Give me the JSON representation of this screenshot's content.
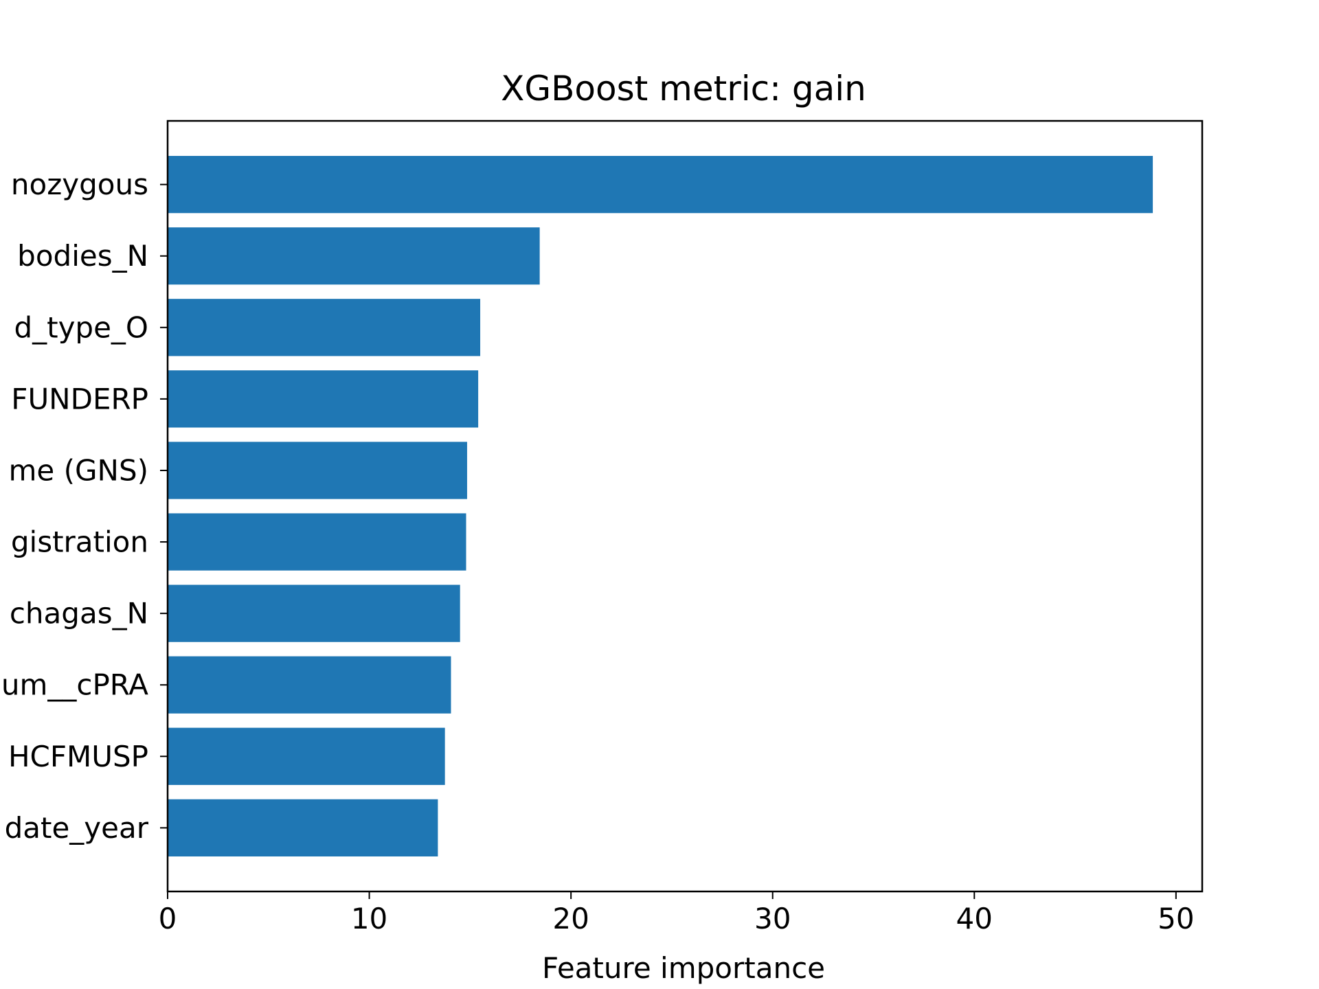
{
  "chart_data": {
    "type": "bar",
    "orientation": "horizontal",
    "title": "XGBoost metric: gain",
    "xlabel": "Feature importance",
    "ylabel": "",
    "categories": [
      "date_year",
      "HCFMUSP",
      "um__cPRA",
      "chagas_N",
      "gistration",
      "me (GNS)",
      "FUNDERP",
      "d_type_O",
      "bodies_N",
      "nozygous"
    ],
    "values": [
      13.4,
      13.75,
      14.05,
      14.5,
      14.8,
      14.85,
      15.4,
      15.5,
      18.45,
      48.85
    ],
    "xlim": [
      0,
      51.3
    ],
    "xticks": [
      0,
      10,
      20,
      30,
      40,
      50
    ],
    "xtick_labels": [
      "0",
      "10",
      "20",
      "30",
      "40",
      "50"
    ],
    "bar_color": "#1f77b4",
    "grid": false,
    "legend": "none"
  }
}
